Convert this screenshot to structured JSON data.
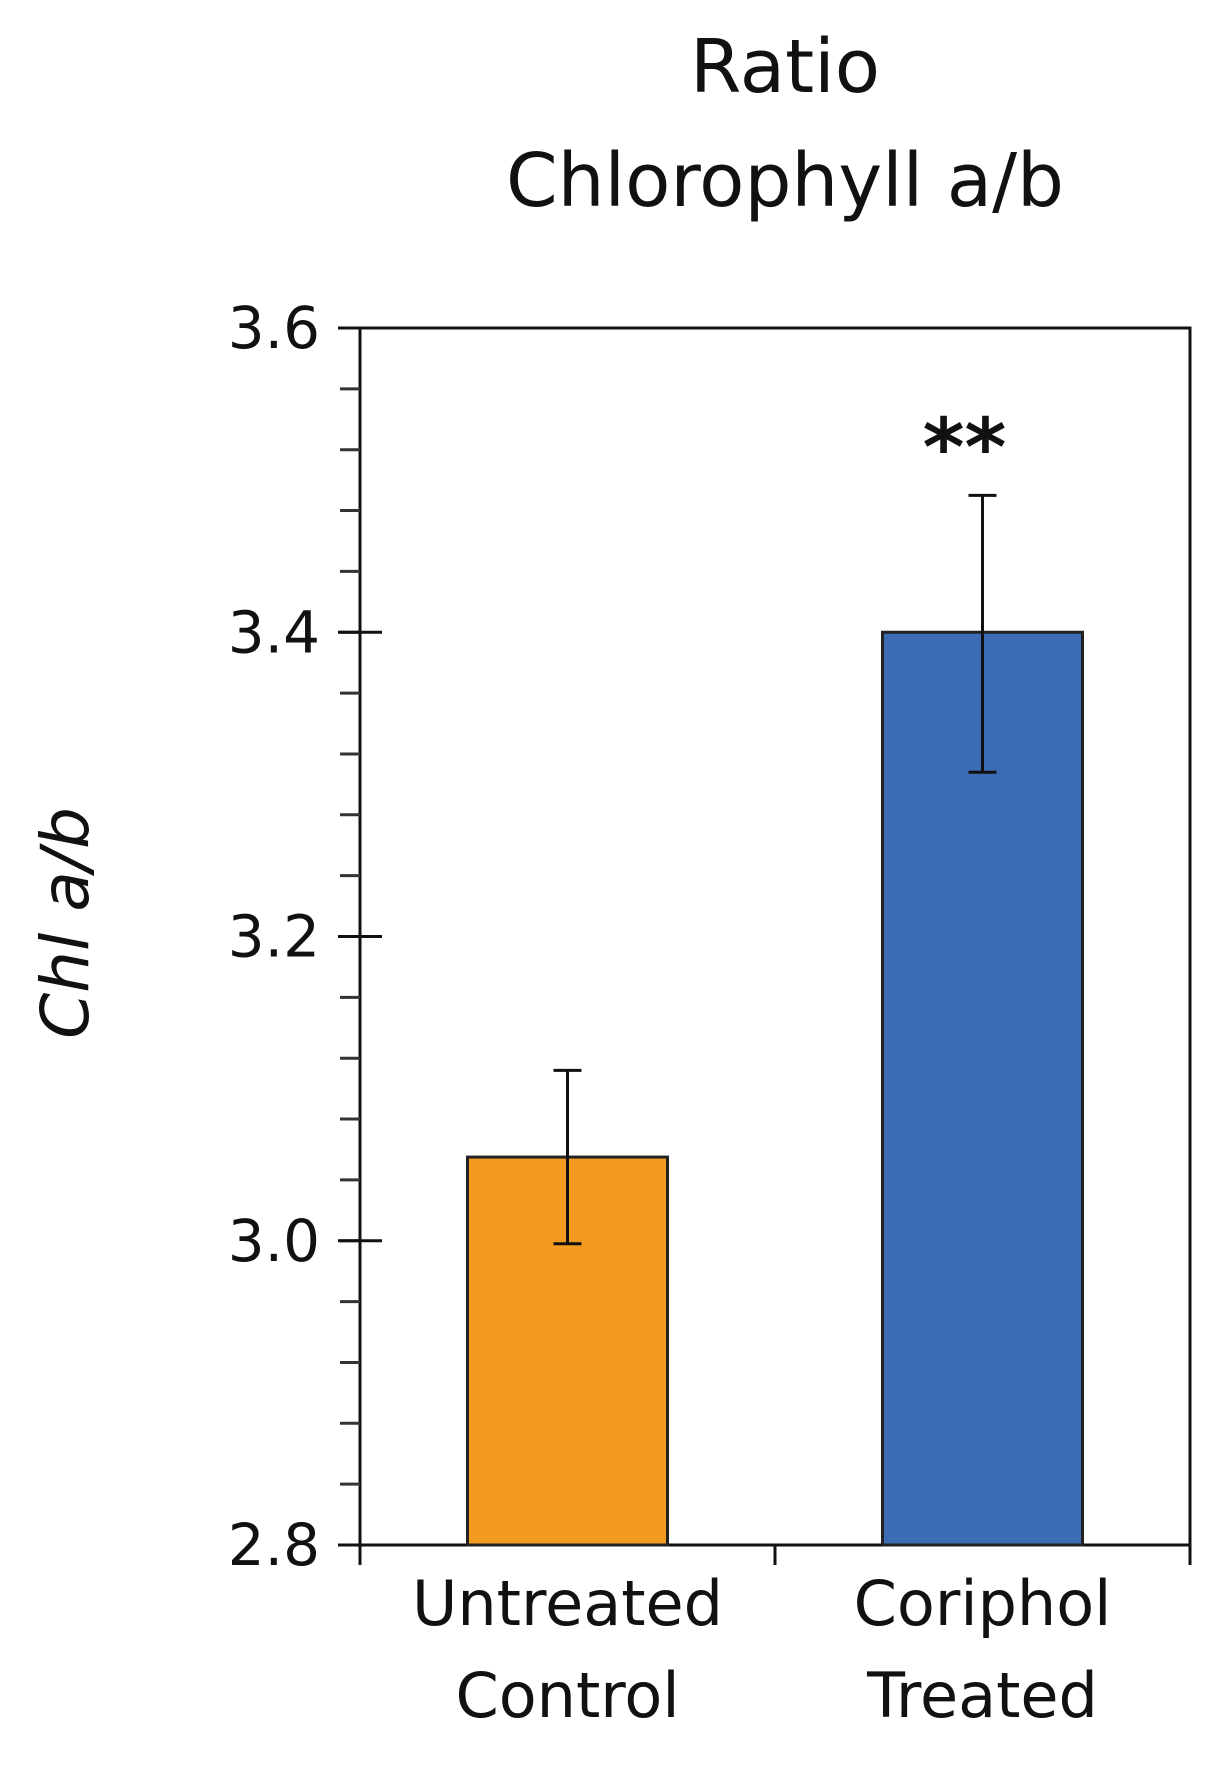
{
  "chart_data": {
    "type": "bar",
    "title": [
      "Ratio",
      "Chlorophyll a/b"
    ],
    "ylabel": "Chl a/b",
    "xlabel": "",
    "ylim": [
      2.8,
      3.6
    ],
    "yticks": [
      "2.8",
      "3.0",
      "3.2",
      "3.4",
      "3.6"
    ],
    "ytick_values": [
      2.8,
      3.0,
      3.2,
      3.4,
      3.6
    ],
    "minor_tick_step": 0.04,
    "categories": [
      [
        "Untreated",
        "Control"
      ],
      [
        "Coriphol",
        "Treated"
      ]
    ],
    "values": [
      3.055,
      3.4
    ],
    "error_low": [
      2.998,
      3.308
    ],
    "error_high": [
      3.112,
      3.49
    ],
    "colors": [
      "#F39A21",
      "#3C6DB4"
    ],
    "significance": [
      "",
      "**"
    ],
    "grid": false,
    "legend": "none"
  }
}
